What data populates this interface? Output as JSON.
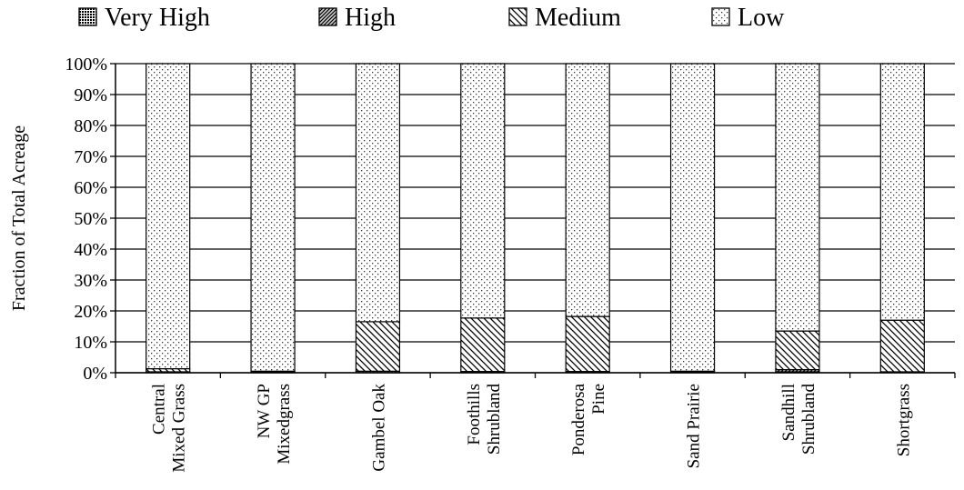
{
  "chart_data": {
    "type": "bar",
    "stacked": true,
    "ylabel": "Fraction of Total Acreage",
    "xlabel": "",
    "ylim": [
      0,
      100
    ],
    "yticks": [
      "0%",
      "10%",
      "20%",
      "30%",
      "40%",
      "50%",
      "60%",
      "70%",
      "80%",
      "90%",
      "100%"
    ],
    "legend_position": "top",
    "grid": true,
    "categories": [
      [
        "Central",
        "Mixed Grass"
      ],
      [
        "NW GP",
        "Mixedgrass"
      ],
      [
        "Gambel Oak"
      ],
      [
        "Foothills",
        "Shrubland"
      ],
      [
        "Ponderosa",
        "Pine"
      ],
      [
        "Sand Prairie"
      ],
      [
        "Sandhill",
        "Shrubland"
      ],
      [
        "Shortgrass"
      ]
    ],
    "series": [
      {
        "name": "Very High",
        "pattern": "dense-dots",
        "values": [
          0,
          0,
          0,
          0,
          0,
          0,
          0.3,
          0
        ]
      },
      {
        "name": "High",
        "pattern": "dense-diagonal",
        "values": [
          0.3,
          0.3,
          0.5,
          0.4,
          0.4,
          0.3,
          0.7,
          0.3
        ]
      },
      {
        "name": "Medium",
        "pattern": "diagonal",
        "values": [
          1,
          0.2,
          16,
          17.3,
          17.8,
          0.2,
          12.5,
          16.7
        ]
      },
      {
        "name": "Low",
        "pattern": "sparse-dots",
        "values": [
          98.7,
          99.5,
          83.5,
          82.3,
          81.8,
          99.5,
          86.5,
          83
        ]
      }
    ]
  }
}
